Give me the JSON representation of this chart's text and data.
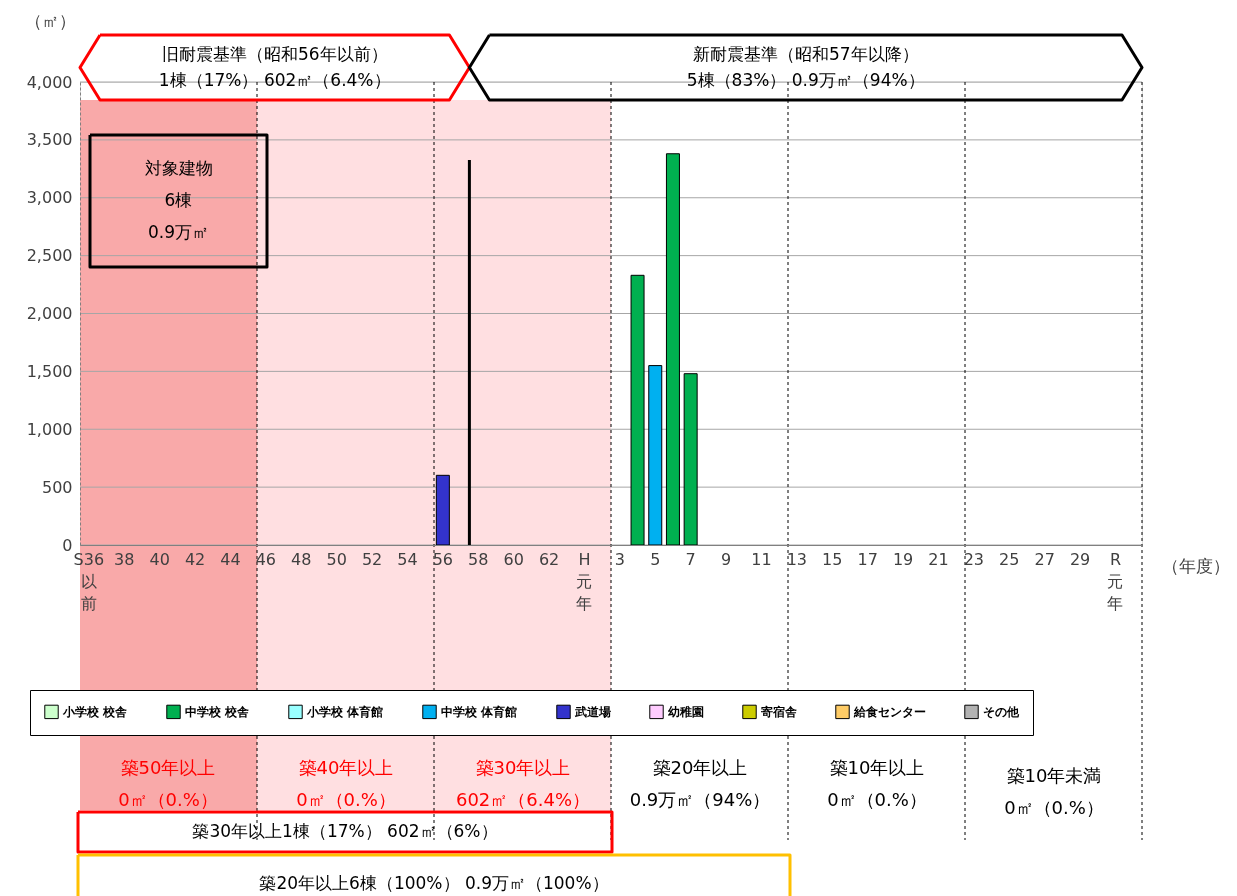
{
  "chart_data": {
    "type": "bar",
    "xlabel": "（年度）",
    "ylabel": "（㎡）",
    "categories": [
      "S36以前",
      null,
      "38",
      null,
      "40",
      null,
      "42",
      null,
      "44",
      null,
      "46",
      null,
      "48",
      null,
      "50",
      null,
      "52",
      null,
      "54",
      null,
      "56",
      null,
      "58",
      null,
      "60",
      null,
      "62",
      null,
      "H元年",
      null,
      "3",
      null,
      "5",
      null,
      "7",
      null,
      "9",
      null,
      "11",
      null,
      "13",
      null,
      "15",
      null,
      "17",
      null,
      "19",
      null,
      "21",
      null,
      "23",
      null,
      "25",
      null,
      "27",
      null,
      "29",
      null,
      "R元年",
      null
    ],
    "ylim": [
      0,
      4000
    ],
    "yticks": [
      0,
      {
        "value": 500,
        "label": "500"
      },
      {
        "value": 1000,
        "label": "1,000"
      },
      {
        "value": 1500,
        "label": "1,500"
      },
      {
        "value": 2000,
        "label": "2,000"
      },
      {
        "value": 2500,
        "label": "2,500"
      },
      {
        "value": 3000,
        "label": "3,000"
      },
      {
        "value": 3500,
        "label": "3,500"
      },
      {
        "value": 4000,
        "label": "4,000"
      }
    ],
    "grid": "y",
    "legend": "bottom",
    "series": [
      {
        "name": "小学校 校舎",
        "color": "#ccffcc",
        "values": [
          null,
          null,
          null,
          null,
          null,
          null,
          null,
          null,
          null,
          null,
          null,
          null,
          null,
          null,
          null,
          null,
          null,
          null,
          null,
          null,
          null,
          null,
          null,
          null,
          null,
          null,
          null,
          null,
          null,
          null,
          null,
          null,
          null,
          null,
          null,
          null,
          null,
          null,
          null,
          null,
          null,
          null,
          null,
          null,
          null,
          null,
          null,
          null,
          null,
          null,
          null,
          null,
          null,
          null,
          null,
          null,
          null,
          null,
          null,
          null
        ]
      },
      {
        "name": "中学校 校舎",
        "color": "#00b050",
        "values": [
          null,
          null,
          null,
          null,
          null,
          null,
          null,
          null,
          null,
          null,
          null,
          null,
          null,
          null,
          null,
          null,
          null,
          null,
          null,
          null,
          null,
          null,
          null,
          null,
          null,
          null,
          null,
          null,
          null,
          null,
          null,
          2330,
          null,
          3380,
          1480,
          null,
          null,
          null,
          null,
          null,
          null,
          null,
          null,
          null,
          null,
          null,
          null,
          null,
          null,
          null,
          null,
          null,
          null,
          null,
          null,
          null,
          null,
          null,
          null,
          null
        ]
      },
      {
        "name": "小学校 体育館",
        "color": "#99ffff",
        "values": [
          null,
          null,
          null,
          null,
          null,
          null,
          null,
          null,
          null,
          null,
          null,
          null,
          null,
          null,
          null,
          null,
          null,
          null,
          null,
          null,
          null,
          null,
          null,
          null,
          null,
          null,
          null,
          null,
          null,
          null,
          null,
          null,
          null,
          null,
          null,
          null,
          null,
          null,
          null,
          null,
          null,
          null,
          null,
          null,
          null,
          null,
          null,
          null,
          null,
          null,
          null,
          null,
          null,
          null,
          null,
          null,
          null,
          null,
          null,
          null
        ]
      },
      {
        "name": "中学校 体育館",
        "color": "#00b0f0",
        "values": [
          null,
          null,
          null,
          null,
          null,
          null,
          null,
          null,
          null,
          null,
          null,
          null,
          null,
          null,
          null,
          null,
          null,
          null,
          null,
          null,
          null,
          null,
          null,
          null,
          null,
          null,
          null,
          null,
          null,
          null,
          null,
          null,
          1550,
          null,
          null,
          null,
          null,
          null,
          null,
          null,
          null,
          null,
          null,
          null,
          null,
          null,
          null,
          null,
          null,
          null,
          null,
          null,
          null,
          null,
          null,
          null,
          null,
          null,
          null,
          null
        ]
      },
      {
        "name": "武道場",
        "color": "#3333cc",
        "values": [
          null,
          null,
          null,
          null,
          null,
          null,
          null,
          null,
          null,
          null,
          null,
          null,
          null,
          null,
          null,
          null,
          null,
          null,
          null,
          null,
          602,
          null,
          null,
          null,
          null,
          null,
          null,
          null,
          null,
          null,
          null,
          null,
          null,
          null,
          null,
          null,
          null,
          null,
          null,
          null,
          null,
          null,
          null,
          null,
          null,
          null,
          null,
          null,
          null,
          null,
          null,
          null,
          null,
          null,
          null,
          null,
          null,
          null,
          null,
          null
        ]
      },
      {
        "name": "幼稚園",
        "color": "#ffccff",
        "values": [
          null,
          null,
          null,
          null,
          null,
          null,
          null,
          null,
          null,
          null,
          null,
          null,
          null,
          null,
          null,
          null,
          null,
          null,
          null,
          null,
          null,
          null,
          null,
          null,
          null,
          null,
          null,
          null,
          null,
          null,
          null,
          null,
          null,
          null,
          null,
          null,
          null,
          null,
          null,
          null,
          null,
          null,
          null,
          null,
          null,
          null,
          null,
          null,
          null,
          null,
          null,
          null,
          null,
          null,
          null,
          null,
          null,
          null,
          null,
          null
        ]
      },
      {
        "name": "寄宿舎",
        "color": "#cccc00",
        "values": [
          null,
          null,
          null,
          null,
          null,
          null,
          null,
          null,
          null,
          null,
          null,
          null,
          null,
          null,
          null,
          null,
          null,
          null,
          null,
          null,
          null,
          null,
          null,
          null,
          null,
          null,
          null,
          null,
          null,
          null,
          null,
          null,
          null,
          null,
          null,
          null,
          null,
          null,
          null,
          null,
          null,
          null,
          null,
          null,
          null,
          null,
          null,
          null,
          null,
          null,
          null,
          null,
          null,
          null,
          null,
          null,
          null,
          null,
          null,
          null
        ]
      },
      {
        "name": "給食センター",
        "color": "#ffcc66",
        "values": [
          null,
          null,
          null,
          null,
          null,
          null,
          null,
          null,
          null,
          null,
          null,
          null,
          null,
          null,
          null,
          null,
          null,
          null,
          null,
          null,
          null,
          null,
          null,
          null,
          null,
          null,
          null,
          null,
          null,
          null,
          null,
          null,
          null,
          null,
          null,
          null,
          null,
          null,
          null,
          null,
          null,
          null,
          null,
          null,
          null,
          null,
          null,
          null,
          null,
          null,
          null,
          null,
          null,
          null,
          null,
          null,
          null,
          null,
          null,
          null
        ]
      },
      {
        "name": "その他",
        "color": "#b2b2b2",
        "values": [
          null,
          null,
          null,
          null,
          null,
          null,
          null,
          null,
          null,
          null,
          null,
          null,
          null,
          null,
          null,
          null,
          null,
          null,
          null,
          null,
          null,
          null,
          null,
          null,
          null,
          null,
          null,
          null,
          null,
          null,
          null,
          null,
          null,
          null,
          null,
          null,
          null,
          null,
          null,
          null,
          null,
          null,
          null,
          null,
          null,
          null,
          null,
          null,
          null,
          null,
          null,
          null,
          null,
          null,
          null,
          null,
          null,
          null,
          null,
          null
        ]
      }
    ],
    "annotations": [
      "旧耐震基準（昭和56年以前）\n1棟（17%） 602㎡（6.4%）",
      "新耐震基準（昭和57年以降）\n5棟（83%） 0.9万㎡（94%）",
      "対象建物\n6棟\n0.9万㎡",
      "築30年以上1棟（17%） 602㎡（6%）",
      "築20年以上6棟（100%） 0.9万㎡（100%）",
      "築50年以上\n0㎡（0.%）",
      "築40年以上\n0㎡（0.%）",
      "築30年以上\n602㎡（6.4%）",
      "築20年以上\n0.9万㎡（94%）",
      "築10年以上\n0㎡（0.%）",
      "築10年未満\n0㎡（0.%）"
    ]
  }
}
